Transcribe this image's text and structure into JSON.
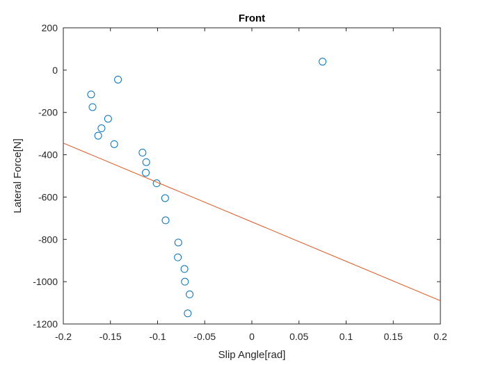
{
  "chart_data": {
    "type": "scatter",
    "title": "Front",
    "xlabel": "Slip Angle[rad]",
    "ylabel": "Lateral Force[N]",
    "xlim": [
      -0.2,
      0.2
    ],
    "ylim": [
      -1200,
      200
    ],
    "xticks": [
      -0.2,
      -0.15,
      -0.1,
      -0.05,
      0,
      0.05,
      0.1,
      0.15,
      0.2
    ],
    "xtick_labels": [
      "-0.2",
      "-0.15",
      "-0.1",
      "-0.05",
      "0",
      "0.05",
      "0.1",
      "0.15",
      "0.2"
    ],
    "yticks": [
      200,
      0,
      -200,
      -400,
      -600,
      -800,
      -1000,
      -1200
    ],
    "ytick_labels": [
      "200",
      "0",
      "-200",
      "-400",
      "-600",
      "-800",
      "-1000",
      "-1200"
    ],
    "grid": false,
    "series": [
      {
        "type": "scatter",
        "color": "#0072BD",
        "points": [
          [
            -0.1705,
            -115
          ],
          [
            -0.169,
            -175
          ],
          [
            -0.142,
            -45
          ],
          [
            -0.1525,
            -230
          ],
          [
            -0.1595,
            -275
          ],
          [
            -0.163,
            -310
          ],
          [
            -0.146,
            -350
          ],
          [
            -0.116,
            -390
          ],
          [
            -0.112,
            -435
          ],
          [
            -0.1125,
            -485
          ],
          [
            -0.101,
            -535
          ],
          [
            -0.092,
            -605
          ],
          [
            -0.0915,
            -710
          ],
          [
            -0.078,
            -815
          ],
          [
            -0.0785,
            -885
          ],
          [
            -0.0715,
            -940
          ],
          [
            -0.071,
            -1000
          ],
          [
            -0.066,
            -1060
          ],
          [
            -0.068,
            -1150
          ],
          [
            0.075,
            40
          ]
        ]
      },
      {
        "type": "line",
        "color": "#D95319",
        "points": [
          [
            -0.2,
            -345
          ],
          [
            0.2,
            -1090
          ]
        ]
      }
    ]
  }
}
